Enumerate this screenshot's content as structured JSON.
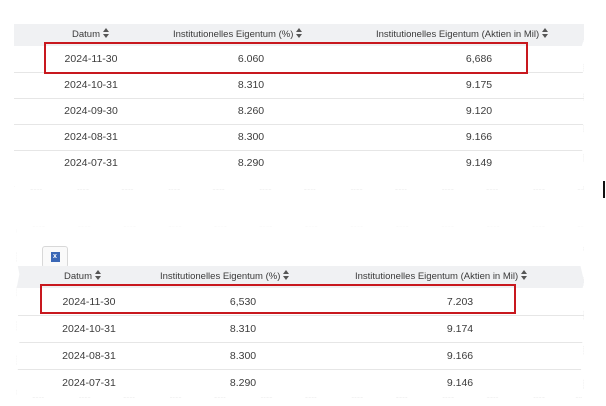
{
  "table_top": {
    "columns": [
      "Datum",
      "Institutionelles Eigentum (%)",
      "Institutionelles Eigentum (Aktien in Mil)"
    ],
    "rows": [
      [
        "2024-11-30",
        "6.060",
        "6,686"
      ],
      [
        "2024-10-31",
        "8.310",
        "9.175"
      ],
      [
        "2024-09-30",
        "8.260",
        "9.120"
      ],
      [
        "2024-08-31",
        "8.300",
        "9.166"
      ],
      [
        "2024-07-31",
        "8.290",
        "9.149"
      ]
    ]
  },
  "table_bottom": {
    "export_icon": "excel-export-icon",
    "export_letter": "x",
    "columns": [
      "Datum",
      "Institutionelles Eigentum (%)",
      "Institutionelles Eigentum (Aktien in Mil)"
    ],
    "rows": [
      [
        "2024-11-30",
        "6,530",
        "7.203"
      ],
      [
        "2024-10-31",
        "8.310",
        "9.174"
      ],
      [
        "2024-08-31",
        "8.300",
        "9.166"
      ],
      [
        "2024-07-31",
        "8.290",
        "9.146"
      ]
    ]
  },
  "colors": {
    "highlight": "#c8181e",
    "header_bg": "#f0f1f3"
  }
}
